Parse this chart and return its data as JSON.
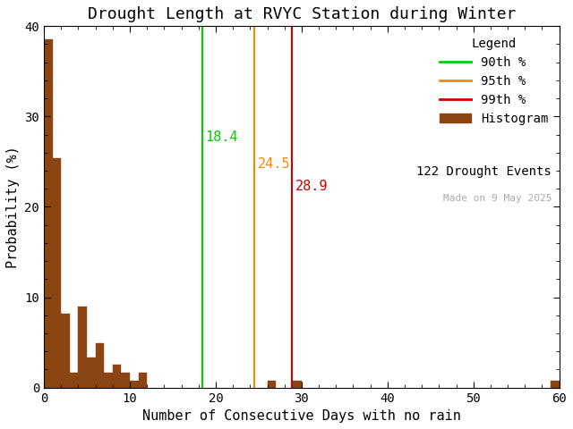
{
  "title": "Drought Length at RVYC Station during Winter",
  "xlabel": "Number of Consecutive Days with no rain",
  "ylabel": "Probability (%)",
  "xlim": [
    0,
    60
  ],
  "ylim": [
    0,
    40
  ],
  "xticks": [
    0,
    10,
    20,
    30,
    40,
    50,
    60
  ],
  "yticks": [
    0,
    10,
    20,
    30,
    40
  ],
  "bar_color": "#8B4513",
  "bar_edgecolor": "#8B4513",
  "background_color": "#ffffff",
  "bar_heights": [
    38.5,
    25.4,
    8.2,
    1.6,
    9.0,
    3.3,
    4.9,
    1.6,
    2.5,
    1.6,
    0.8,
    1.6,
    0.0,
    0.0,
    0.0,
    0.0,
    0.0,
    0.0,
    0.0,
    0.0,
    0.0,
    0.0,
    0.0,
    0.0,
    0.0,
    0.0,
    0.8,
    0.0,
    0.0,
    0.8,
    0.0,
    0.0,
    0.0,
    0.0,
    0.0,
    0.0,
    0.0,
    0.0,
    0.0,
    0.0,
    0.0,
    0.0,
    0.0,
    0.0,
    0.0,
    0.0,
    0.0,
    0.0,
    0.0,
    0.0,
    0.0,
    0.0,
    0.0,
    0.0,
    0.0,
    0.0,
    0.0,
    0.0,
    0.0,
    0.8
  ],
  "p90": 18.4,
  "p95": 24.5,
  "p99": 28.9,
  "p90_color": "#00cc00",
  "p95_color": "#ff8800",
  "p99_color": "#cc0000",
  "p90_label": "90th %",
  "p95_label": "95th %",
  "p99_label": "99th %",
  "hist_label": "Histogram",
  "legend_title": "Legend",
  "n_events_text": "122 Drought Events",
  "made_on_text": "Made on 9 May 2025",
  "made_on_color": "#aaaaaa",
  "title_fontsize": 13,
  "axis_fontsize": 11,
  "tick_fontsize": 10,
  "legend_fontsize": 10,
  "annotation_fontsize": 11
}
